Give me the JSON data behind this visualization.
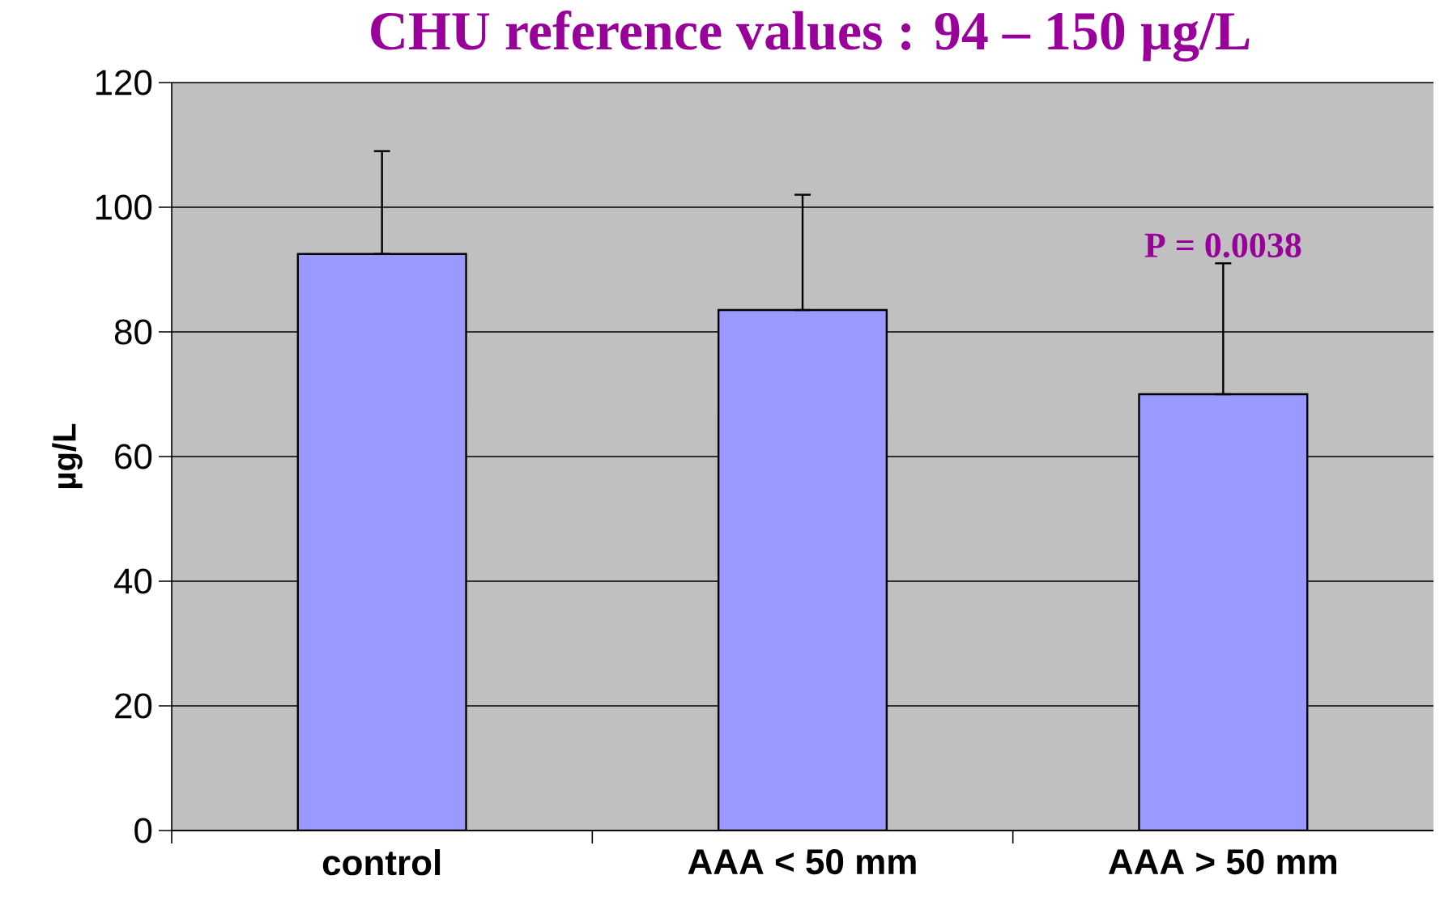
{
  "chart_data": {
    "type": "bar",
    "title": "CHU reference values : 94 – 150 µg/L",
    "ylabel": "µg/L",
    "categories": [
      "control",
      "AAA < 50 mm",
      "AAA > 50 mm"
    ],
    "values": [
      92.5,
      83.5,
      70
    ],
    "errors": [
      [
        92.5,
        109
      ],
      [
        83.5,
        102
      ],
      [
        70,
        91
      ]
    ],
    "color": "#9999ff",
    "ylim": [
      0,
      120
    ],
    "yticks": [
      0,
      20,
      40,
      60,
      80,
      100,
      120
    ],
    "grid": "y",
    "annotations": [
      "P = 0.0038"
    ]
  }
}
